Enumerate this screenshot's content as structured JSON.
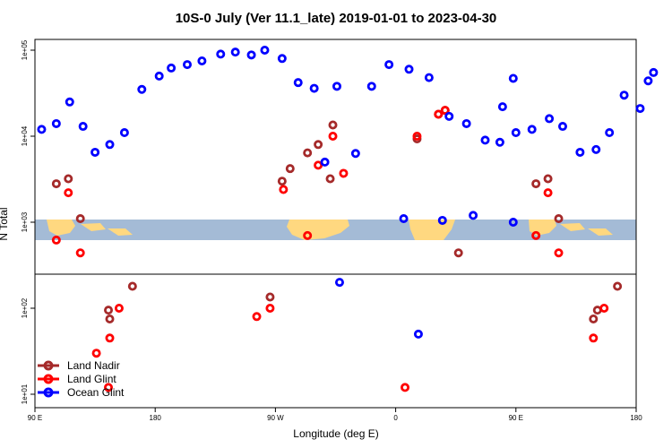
{
  "chart_data": {
    "type": "scatter",
    "title": "10S-0 July (Ver 11.1_late)   2019-01-01 to 2023-04-30",
    "xlabel": "Longitude (deg E)",
    "ylabel": "N Total",
    "xscale": "linear",
    "yscale": "log",
    "xlim": [
      90,
      540
    ],
    "ylim": [
      1,
      100000
    ],
    "x_ticks": [
      {
        "value": 90,
        "label": "90 E"
      },
      {
        "value": 180,
        "label": "180"
      },
      {
        "value": 270,
        "label": "90 W"
      },
      {
        "value": 360,
        "label": "0"
      },
      {
        "value": 450,
        "label": "90 E"
      },
      {
        "value": 540,
        "label": "180"
      }
    ],
    "y_ticks": [
      {
        "value": 100000,
        "label": "1e+05"
      },
      {
        "value": 10000,
        "label": "1e+04"
      },
      {
        "value": 1000,
        "label": "1e+03"
      },
      {
        "value": 100,
        "label": "1e+02"
      },
      {
        "value": 10,
        "label": "1e+01"
      }
    ],
    "reference_line_y": 400,
    "colors": {
      "land_nadir": "#a52a2a",
      "land_glint": "#ff0000",
      "ocean_glint": "#0000ff",
      "map_ocean": "#a4bbd6",
      "map_land": "#ffd880"
    },
    "map_lat_band": [
      -10,
      0
    ],
    "legend": {
      "position": "bottom-left",
      "entries": [
        "Land Nadir",
        "Land Glint",
        "Ocean Glint"
      ]
    },
    "series": [
      {
        "name": "Land Nadir",
        "color_key": "land_nadir",
        "points": [
          {
            "x": 106,
            "y": 2800
          },
          {
            "x": 115,
            "y": 3200
          },
          {
            "x": 124,
            "y": 1100
          },
          {
            "x": 145,
            "y": 95
          },
          {
            "x": 146,
            "y": 75
          },
          {
            "x": 163,
            "y": 180
          },
          {
            "x": 266,
            "y": 135
          },
          {
            "x": 275,
            "y": 3000
          },
          {
            "x": 281,
            "y": 4200
          },
          {
            "x": 294,
            "y": 6400
          },
          {
            "x": 302,
            "y": 8000
          },
          {
            "x": 311,
            "y": 3200
          },
          {
            "x": 313,
            "y": 13500
          },
          {
            "x": 376,
            "y": 9300
          },
          {
            "x": 392,
            "y": 18000
          },
          {
            "x": 397,
            "y": 20000
          },
          {
            "x": 407,
            "y": 440
          },
          {
            "x": 465,
            "y": 2800
          },
          {
            "x": 474,
            "y": 3200
          },
          {
            "x": 482,
            "y": 1100
          },
          {
            "x": 508,
            "y": 75
          },
          {
            "x": 511,
            "y": 95
          },
          {
            "x": 526,
            "y": 180
          }
        ]
      },
      {
        "name": "Land Glint",
        "color_key": "land_glint",
        "points": [
          {
            "x": 106,
            "y": 620
          },
          {
            "x": 115,
            "y": 2200
          },
          {
            "x": 124,
            "y": 440
          },
          {
            "x": 136,
            "y": 30
          },
          {
            "x": 145,
            "y": 12
          },
          {
            "x": 146,
            "y": 45
          },
          {
            "x": 153,
            "y": 100
          },
          {
            "x": 256,
            "y": 80
          },
          {
            "x": 266,
            "y": 100
          },
          {
            "x": 276,
            "y": 2400
          },
          {
            "x": 294,
            "y": 700
          },
          {
            "x": 302,
            "y": 4600
          },
          {
            "x": 313,
            "y": 10000
          },
          {
            "x": 321,
            "y": 3700
          },
          {
            "x": 367,
            "y": 12
          },
          {
            "x": 376,
            "y": 10000
          },
          {
            "x": 392,
            "y": 18000
          },
          {
            "x": 397,
            "y": 20000
          },
          {
            "x": 465,
            "y": 700
          },
          {
            "x": 474,
            "y": 2200
          },
          {
            "x": 482,
            "y": 440
          },
          {
            "x": 508,
            "y": 45
          },
          {
            "x": 516,
            "y": 100
          }
        ]
      },
      {
        "name": "Ocean Glint",
        "color_key": "ocean_glint",
        "points": [
          {
            "x": 95,
            "y": 12000
          },
          {
            "x": 106,
            "y": 14000
          },
          {
            "x": 116,
            "y": 25000
          },
          {
            "x": 126,
            "y": 13000
          },
          {
            "x": 135,
            "y": 6500
          },
          {
            "x": 146,
            "y": 8000
          },
          {
            "x": 157,
            "y": 11000
          },
          {
            "x": 170,
            "y": 35000
          },
          {
            "x": 183,
            "y": 50000
          },
          {
            "x": 192,
            "y": 62000
          },
          {
            "x": 204,
            "y": 68000
          },
          {
            "x": 215,
            "y": 75000
          },
          {
            "x": 229,
            "y": 90000
          },
          {
            "x": 240,
            "y": 95000
          },
          {
            "x": 252,
            "y": 88000
          },
          {
            "x": 262,
            "y": 100000
          },
          {
            "x": 275,
            "y": 80000
          },
          {
            "x": 287,
            "y": 42000
          },
          {
            "x": 299,
            "y": 36000
          },
          {
            "x": 307,
            "y": 5000
          },
          {
            "x": 330,
            "y": 6300
          },
          {
            "x": 342,
            "y": 38000
          },
          {
            "x": 355,
            "y": 68000
          },
          {
            "x": 370,
            "y": 60000
          },
          {
            "x": 385,
            "y": 48000
          },
          {
            "x": 400,
            "y": 17000
          },
          {
            "x": 413,
            "y": 14000
          },
          {
            "x": 427,
            "y": 9000
          },
          {
            "x": 438,
            "y": 8500
          },
          {
            "x": 450,
            "y": 11000
          },
          {
            "x": 462,
            "y": 12000
          },
          {
            "x": 475,
            "y": 16000
          },
          {
            "x": 485,
            "y": 13000
          },
          {
            "x": 498,
            "y": 6500
          },
          {
            "x": 510,
            "y": 7000
          },
          {
            "x": 520,
            "y": 11000
          },
          {
            "x": 531,
            "y": 30000
          },
          {
            "x": 543,
            "y": 21000
          },
          {
            "x": 549,
            "y": 44000
          },
          {
            "x": 553,
            "y": 55000
          },
          {
            "x": 395,
            "y": 1050
          },
          {
            "x": 418,
            "y": 1200
          },
          {
            "x": 316,
            "y": 38000
          },
          {
            "x": 440,
            "y": 22000
          },
          {
            "x": 448,
            "y": 47000
          },
          {
            "x": 366,
            "y": 1100
          },
          {
            "x": 448,
            "y": 1000
          },
          {
            "x": 318,
            "y": 200
          },
          {
            "x": 377,
            "y": 50
          }
        ]
      }
    ]
  }
}
